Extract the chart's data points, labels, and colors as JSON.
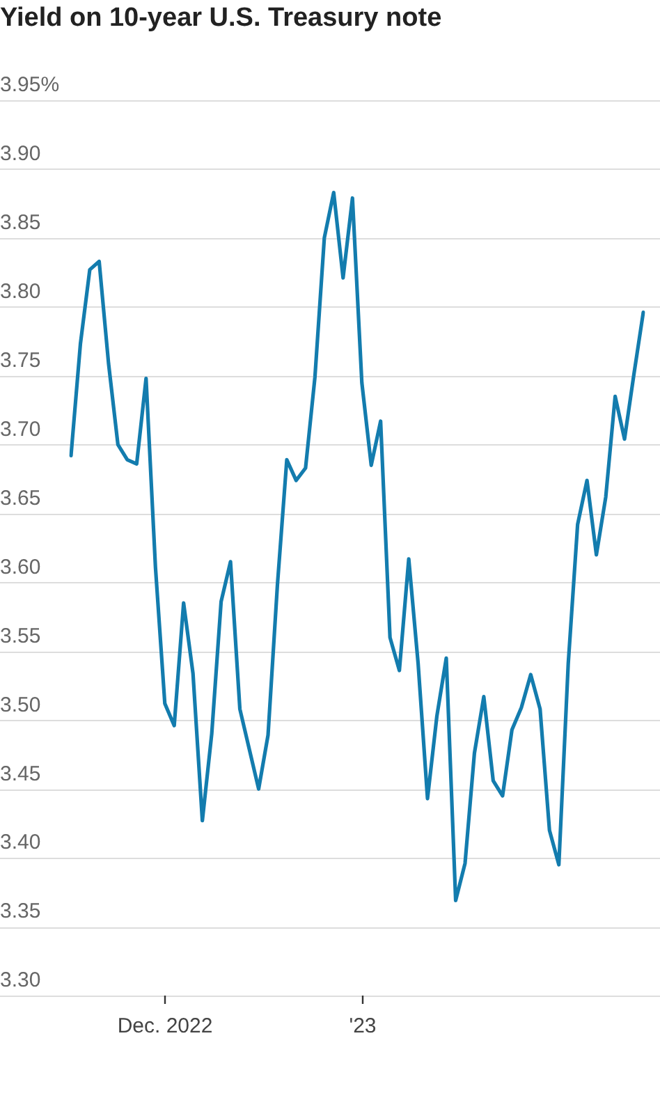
{
  "chart_data": {
    "type": "line",
    "title": "Yield on 10-year U.S. Treasury note",
    "categories": [
      null,
      null,
      null,
      null,
      null,
      null,
      null,
      null,
      null,
      null,
      "Dec. 2022",
      null,
      null,
      null,
      null,
      null,
      null,
      null,
      null,
      null,
      null,
      null,
      null,
      null,
      null,
      null,
      null,
      null,
      null,
      null,
      null,
      "'23",
      null,
      null,
      null,
      null,
      null,
      null,
      null,
      null,
      null,
      null,
      null,
      null,
      null,
      null,
      null,
      null,
      null,
      null,
      null,
      null,
      null,
      null,
      null,
      null,
      null,
      null,
      null,
      null,
      null,
      null
    ],
    "series": [
      {
        "color": "#137cae",
        "values": [
          3.692,
          3.773,
          3.827,
          3.833,
          3.759,
          3.7,
          3.689,
          3.686,
          3.748,
          3.611,
          3.512,
          3.496,
          3.585,
          3.534,
          3.427,
          3.49,
          3.586,
          3.615,
          3.508,
          3.479,
          3.45,
          3.489,
          3.598,
          3.689,
          3.674,
          3.683,
          3.749,
          3.85,
          3.883,
          3.821,
          3.879,
          3.745,
          3.685,
          3.717,
          3.56,
          3.536,
          3.617,
          3.541,
          3.443,
          3.503,
          3.545,
          3.369,
          3.396,
          3.476,
          3.517,
          3.456,
          3.445,
          3.493,
          3.509,
          3.533,
          3.508,
          3.42,
          3.395,
          3.541,
          3.642,
          3.674,
          3.62,
          3.662,
          3.735,
          3.704,
          3.751,
          3.796
        ]
      }
    ],
    "ylim": [
      3.3,
      3.95
    ],
    "yticks": [
      {
        "value": 3.3,
        "label": "3.30"
      },
      {
        "value": 3.35,
        "label": "3.35"
      },
      {
        "value": 3.4,
        "label": "3.40"
      },
      {
        "value": 3.45,
        "label": "3.45"
      },
      {
        "value": 3.5,
        "label": "3.50"
      },
      {
        "value": 3.55,
        "label": "3.55"
      },
      {
        "value": 3.6,
        "label": "3.60"
      },
      {
        "value": 3.65,
        "label": "3.65"
      },
      {
        "value": 3.7,
        "label": "3.70"
      },
      {
        "value": 3.75,
        "label": "3.75"
      },
      {
        "value": 3.8,
        "label": "3.80"
      },
      {
        "value": 3.85,
        "label": "3.85"
      },
      {
        "value": 3.9,
        "label": "3.90"
      },
      {
        "value": 3.95,
        "label": "3.95%"
      }
    ],
    "grid": "y",
    "legend": false,
    "marker": "none",
    "line_style": "solid"
  }
}
